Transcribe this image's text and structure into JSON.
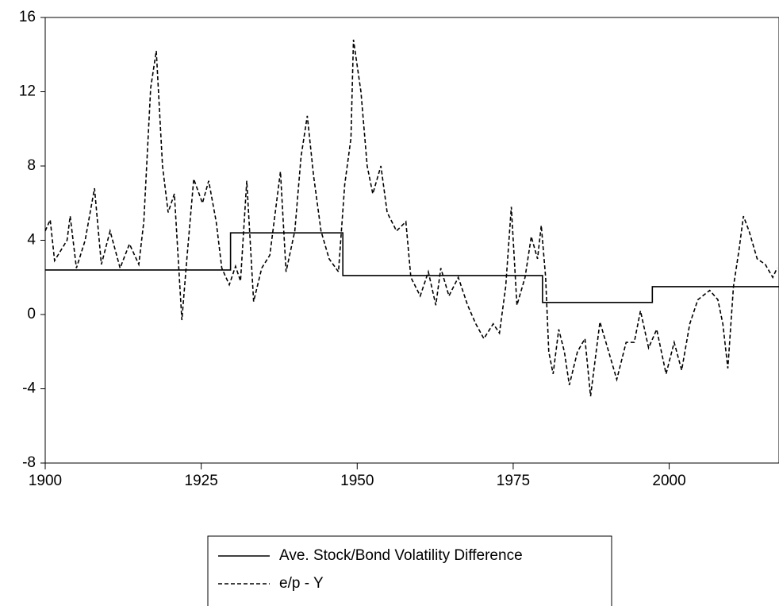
{
  "chart_data": {
    "type": "line",
    "xlim": [
      1900,
      2017.6
    ],
    "xticks": [
      1900,
      1925,
      1950,
      1975,
      2000
    ],
    "ylim": [
      -8,
      16
    ],
    "yticks": [
      -8,
      -4,
      0,
      4,
      8,
      12,
      16
    ],
    "legend": "bottom",
    "series": [
      {
        "name": "Ave. Stock/Bond Volatility Difference",
        "color": "#000000",
        "dash": "solid",
        "x": [
          1900,
          1929.7,
          1929.7,
          1947.7,
          1947.7,
          1979.7,
          1979.7,
          1997.3,
          1997.3,
          2017.6
        ],
        "values": [
          2.4,
          2.4,
          4.4,
          4.4,
          2.1,
          2.1,
          0.65,
          0.65,
          1.5,
          1.5
        ]
      },
      {
        "name": "e/p - Y",
        "color": "#000000",
        "dash": "dashed",
        "x": [
          1900,
          1900.8,
          1901.5,
          1903.5,
          1904,
          1905,
          1906.4,
          1907.9,
          1909,
          1910.4,
          1912,
          1913.5,
          1915,
          1915.8,
          1916.9,
          1917.8,
          1918.8,
          1919.7,
          1920.7,
          1921.9,
          1922.7,
          1923.8,
          1925.2,
          1926.2,
          1927.4,
          1928.3,
          1929.5,
          1930.5,
          1931.3,
          1932.3,
          1933.4,
          1934.7,
          1936,
          1937.7,
          1938.6,
          1940,
          1941,
          1942,
          1943,
          1944.2,
          1945.5,
          1947,
          1948,
          1949,
          1949.4,
          1950.6,
          1951.6,
          1952.5,
          1953.8,
          1954.8,
          1956.3,
          1957.8,
          1958.6,
          1960.1,
          1961.4,
          1962.6,
          1963.4,
          1964.7,
          1966.2,
          1967.7,
          1969,
          1970.3,
          1971.8,
          1972.8,
          1973.8,
          1974.7,
          1975.6,
          1976.9,
          1977.9,
          1978.9,
          1979.5,
          1980.2,
          1980.7,
          1981.4,
          1982.3,
          1983.2,
          1984,
          1985.3,
          1986.5,
          1987.4,
          1988.9,
          1990.3,
          1991.6,
          1993.1,
          1994.4,
          1995.4,
          1996.7,
          1998,
          1999.5,
          2000.8,
          2002,
          2003.3,
          2004.6,
          2006.5,
          2007.8,
          2008.6,
          2009.4,
          2010.3,
          2011.2,
          2011.9,
          2012.8,
          2014.1,
          2015.4,
          2016.6,
          2017.3
        ],
        "values": [
          4.5,
          5.1,
          2.9,
          4.0,
          5.3,
          2.5,
          4.0,
          6.8,
          2.7,
          4.5,
          2.5,
          3.8,
          2.7,
          5.0,
          12.2,
          14.2,
          8.0,
          5.5,
          6.5,
          -0.3,
          3.0,
          7.3,
          6.0,
          7.2,
          5.0,
          2.5,
          1.6,
          2.6,
          1.8,
          7.2,
          0.7,
          2.5,
          3.2,
          7.7,
          2.3,
          4.5,
          8.5,
          10.7,
          7.5,
          4.5,
          3.0,
          2.3,
          7.0,
          9.5,
          14.8,
          12.0,
          8.0,
          6.5,
          8.0,
          5.5,
          4.5,
          5.0,
          2.0,
          1.0,
          2.3,
          0.5,
          2.5,
          1.0,
          2.0,
          0.5,
          -0.5,
          -1.3,
          -0.5,
          -1.0,
          1.5,
          5.8,
          0.5,
          2.0,
          4.2,
          3.0,
          4.8,
          2.0,
          -2.0,
          -3.2,
          -0.8,
          -2.0,
          -3.8,
          -2.0,
          -1.3,
          -4.4,
          -0.4,
          -2.0,
          -3.5,
          -1.5,
          -1.5,
          0.2,
          -1.8,
          -0.8,
          -3.2,
          -1.5,
          -3.0,
          -0.5,
          0.8,
          1.3,
          0.8,
          -0.5,
          -2.9,
          1.5,
          3.5,
          5.3,
          4.5,
          3.0,
          2.7,
          2.0,
          2.5
        ]
      }
    ]
  }
}
